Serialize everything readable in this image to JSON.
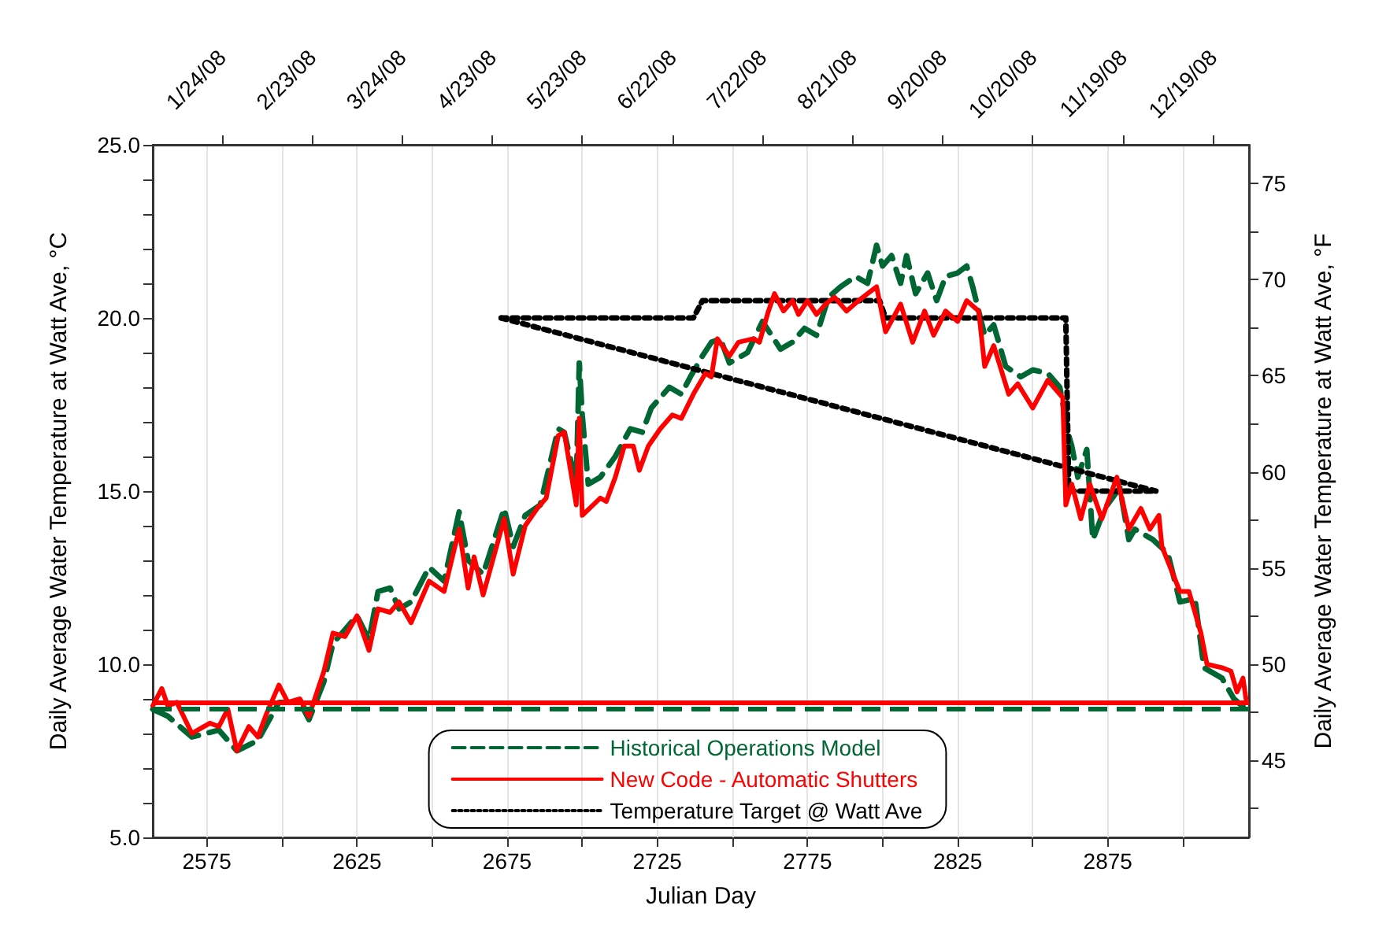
{
  "chart_data": {
    "type": "line",
    "xlabel": "Julian Day",
    "ylabel": "Daily Average Water Temperature at Watt Ave, °C",
    "y2label": "Daily Average Water Temperature at Watt Ave, °F",
    "xlim": [
      2557,
      2922
    ],
    "xticks": [
      2575,
      {
        "value": 2600,
        "label": null
      },
      2625,
      {
        "value": 2650,
        "label": null
      },
      2675,
      {
        "value": 2700,
        "label": null
      },
      2725,
      {
        "value": 2750,
        "label": null
      },
      2775,
      {
        "value": 2800,
        "label": null
      },
      2825,
      {
        "value": 2850,
        "label": null
      },
      2875,
      {
        "value": 2900,
        "label": null
      }
    ],
    "x2lim": [
      "2008-01-01",
      "2008-12-31"
    ],
    "x2ticks": [
      {
        "value": "2008-01-24",
        "label": "1/24/08"
      },
      {
        "value": "2008-02-23",
        "label": "2/23/08"
      },
      {
        "value": "2008-03-24",
        "label": "3/24/08"
      },
      {
        "value": "2008-04-23",
        "label": "4/23/08"
      },
      {
        "value": "2008-05-23",
        "label": "5/23/08"
      },
      {
        "value": "2008-06-22",
        "label": "6/22/08"
      },
      {
        "value": "2008-07-22",
        "label": "7/22/08"
      },
      {
        "value": "2008-08-21",
        "label": "8/21/08"
      },
      {
        "value": "2008-09-20",
        "label": "9/20/08"
      },
      {
        "value": "2008-10-20",
        "label": "10/20/08"
      },
      {
        "value": "2008-11-19",
        "label": "11/19/08"
      },
      {
        "value": "2008-12-19",
        "label": "12/19/08"
      }
    ],
    "ylim": [
      5,
      25
    ],
    "yticks": [
      {
        "value": 5,
        "label": "5.0"
      },
      {
        "value": 6,
        "label": null
      },
      {
        "value": 7,
        "label": null
      },
      {
        "value": 8,
        "label": null
      },
      {
        "value": 9,
        "label": null
      },
      {
        "value": 10,
        "label": "10.0"
      },
      {
        "value": 11,
        "label": null
      },
      {
        "value": 12,
        "label": null
      },
      {
        "value": 13,
        "label": null
      },
      {
        "value": 14,
        "label": null
      },
      {
        "value": 15,
        "label": "15.0"
      },
      {
        "value": 16,
        "label": null
      },
      {
        "value": 17,
        "label": null
      },
      {
        "value": 18,
        "label": null
      },
      {
        "value": 19,
        "label": null
      },
      {
        "value": 20,
        "label": "20.0"
      },
      {
        "value": 21,
        "label": null
      },
      {
        "value": 22,
        "label": null
      },
      {
        "value": 23,
        "label": null
      },
      {
        "value": 24,
        "label": null
      },
      {
        "value": 25,
        "label": "25.0"
      }
    ],
    "y2lim": [
      41,
      77
    ],
    "y2ticks": [
      {
        "value": 42.5,
        "label": null
      },
      45,
      {
        "value": 47.5,
        "label": null
      },
      50,
      {
        "value": 52.5,
        "label": null
      },
      55,
      {
        "value": 57.5,
        "label": null
      },
      60,
      {
        "value": 62.5,
        "label": null
      },
      65,
      {
        "value": 67.5,
        "label": null
      },
      70,
      {
        "value": 72.5,
        "label": null
      },
      75
    ],
    "grid": "x",
    "legend": "bottom",
    "marker": "none",
    "ref_lines": [
      {
        "axis": "y",
        "value": 8.9,
        "color": "#ff0000",
        "line_style": "solid"
      },
      {
        "axis": "y",
        "value": 8.7,
        "color": "#006633",
        "line_style": "dashed"
      }
    ],
    "series": [
      {
        "name": "Historical Operations Model",
        "color": "#006633",
        "line_style": "dashed",
        "x": [
          2557,
          2562,
          2570,
          2579,
          2585,
          2592,
          2599,
          2606,
          2609,
          2614,
          2617,
          2621,
          2625,
          2629,
          2632,
          2636,
          2639,
          2643,
          2649,
          2654,
          2659,
          2662,
          2667,
          2674,
          2677,
          2681,
          2686,
          2692,
          2694,
          2698,
          2699,
          2700,
          2702,
          2706,
          2711,
          2716,
          2720,
          2723,
          2727,
          2729,
          2733,
          2736,
          2740,
          2743,
          2746,
          2749,
          2755,
          2760,
          2766,
          2770,
          2774,
          2778,
          2782,
          2786,
          2791,
          2795,
          2798,
          2800,
          2803,
          2806,
          2808,
          2811,
          2815,
          2818,
          2821,
          2825,
          2828,
          2830,
          2834,
          2837,
          2841,
          2846,
          2850,
          2855,
          2859,
          2862,
          2863,
          2865,
          2868,
          2870,
          2874,
          2879,
          2882,
          2884,
          2890,
          2895,
          2899,
          2904,
          2907,
          2913,
          2917,
          2921
        ],
        "values": [
          8.7,
          8.5,
          7.9,
          8.1,
          7.5,
          7.8,
          8.9,
          8.9,
          8.4,
          9.5,
          10.6,
          11.0,
          11.4,
          10.7,
          12.1,
          12.2,
          11.6,
          11.8,
          12.8,
          12.4,
          14.4,
          13.0,
          12.6,
          14.5,
          13.4,
          14.3,
          14.6,
          16.8,
          16.7,
          15.2,
          18.7,
          17.2,
          15.2,
          15.4,
          16.0,
          16.8,
          16.7,
          17.4,
          17.8,
          18.0,
          17.8,
          18.3,
          18.9,
          19.3,
          19.4,
          18.7,
          19.0,
          19.9,
          19.1,
          19.3,
          19.7,
          19.5,
          20.6,
          20.9,
          21.2,
          21.0,
          22.1,
          21.5,
          21.8,
          21.0,
          21.8,
          20.7,
          21.3,
          20.5,
          21.2,
          21.3,
          21.5,
          20.9,
          19.5,
          19.8,
          18.6,
          18.3,
          18.5,
          18.4,
          18.0,
          16.6,
          16.3,
          15.4,
          16.2,
          13.6,
          14.5,
          15.1,
          13.6,
          13.9,
          13.6,
          13.2,
          11.8,
          11.9,
          9.9,
          9.6,
          9.0,
          8.7
        ]
      },
      {
        "name": "New Code - Automatic Shutters",
        "color": "#ff0000",
        "line_style": "solid",
        "x": [
          2557,
          2560,
          2562,
          2565,
          2570,
          2576,
          2579,
          2582,
          2585,
          2589,
          2592,
          2595,
          2599,
          2602,
          2606,
          2609,
          2614,
          2617,
          2621,
          2625,
          2629,
          2632,
          2636,
          2639,
          2643,
          2649,
          2654,
          2659,
          2662,
          2664,
          2667,
          2674,
          2677,
          2681,
          2685,
          2688,
          2692,
          2694,
          2698,
          2699,
          2700,
          2706,
          2708,
          2711,
          2714,
          2717,
          2719,
          2722,
          2726,
          2730,
          2733,
          2737,
          2741,
          2743,
          2745,
          2749,
          2752,
          2757,
          2759,
          2762,
          2764,
          2767,
          2770,
          2772,
          2775,
          2778,
          2781,
          2784,
          2788,
          2792,
          2795,
          2798,
          2801,
          2806,
          2810,
          2814,
          2817,
          2821,
          2825,
          2828,
          2832,
          2834,
          2837,
          2842,
          2845,
          2850,
          2855,
          2860,
          2861,
          2863,
          2866,
          2869,
          2873,
          2878,
          2882,
          2886,
          2889,
          2892,
          2893,
          2899,
          2902,
          2906,
          2908,
          2913,
          2916,
          2918,
          2920,
          2921
        ],
        "values": [
          8.8,
          9.3,
          8.8,
          8.9,
          8.0,
          8.3,
          8.2,
          8.7,
          7.5,
          8.2,
          7.9,
          8.6,
          9.4,
          8.9,
          9.0,
          8.5,
          9.8,
          10.9,
          10.8,
          11.4,
          10.4,
          11.6,
          11.5,
          11.8,
          11.2,
          12.4,
          12.1,
          13.9,
          12.2,
          13.1,
          12.0,
          14.2,
          12.6,
          14.0,
          14.5,
          14.8,
          16.6,
          16.7,
          14.6,
          17.1,
          14.3,
          14.8,
          14.7,
          15.4,
          16.3,
          16.3,
          15.6,
          16.3,
          16.8,
          17.2,
          17.1,
          17.8,
          18.4,
          18.3,
          19.4,
          18.9,
          19.3,
          19.4,
          19.3,
          20.2,
          20.7,
          20.2,
          20.5,
          20.1,
          20.5,
          20.1,
          20.4,
          20.6,
          20.2,
          20.5,
          20.7,
          20.9,
          19.6,
          20.4,
          19.3,
          20.2,
          19.5,
          20.2,
          19.9,
          20.5,
          20.2,
          18.6,
          19.2,
          17.8,
          18.1,
          17.4,
          18.2,
          17.7,
          14.6,
          15.2,
          14.2,
          15.2,
          14.2,
          15.4,
          13.9,
          14.5,
          13.9,
          14.3,
          13.4,
          12.1,
          12.1,
          10.9,
          10.0,
          9.9,
          9.8,
          9.2,
          9.6,
          9.0
        ]
      },
      {
        "name": "Temperature Target @ Watt Ave",
        "color": "#000000",
        "line_style": "dotted",
        "x": [
          2673,
          2737,
          2740,
          2799,
          2801,
          2861,
          2862,
          2891
        ],
        "values": [
          20.0,
          20.0,
          20.5,
          20.5,
          20.0,
          20.0,
          15.0,
          15.0
        ]
      },
      {
        "color": "#000000",
        "line_style": "dotted",
        "x": [
          2673,
          2891
        ],
        "values": [
          20.0,
          15.0
        ]
      }
    ]
  }
}
